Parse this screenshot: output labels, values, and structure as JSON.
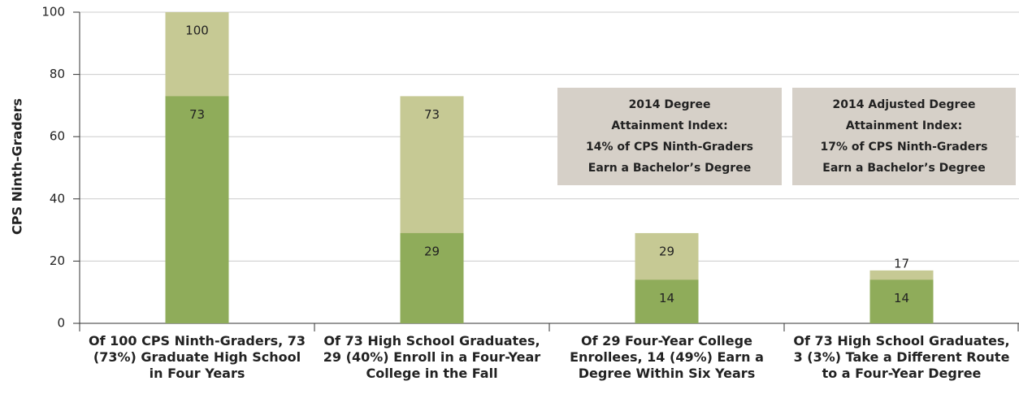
{
  "chart_data": {
    "type": "overlap_bar",
    "ylabel": "CPS Ninth-Graders",
    "categories": [
      "Of 100 CPS Ninth-Graders, 73 (73%) Graduate High School in Four Years",
      "Of 73 High School Graduates, 29 (40%) Enroll in a Four-Year College in the Fall",
      "Of 29 Four-Year College Enrollees, 14 (49%) Earn a Degree Within Six Years",
      "Of 73 High School Graduates, 3 (3%) Take a Different Route to a Four-Year Degree"
    ],
    "series": [
      {
        "color": "#c6c994",
        "values": [
          100,
          73,
          29,
          17
        ]
      },
      {
        "color": "#8fac5a",
        "values": [
          73,
          29,
          14,
          14
        ]
      }
    ],
    "ylim": [
      0,
      100
    ],
    "yticks": [
      0,
      20,
      40,
      60,
      80,
      100
    ],
    "grid": true,
    "annotations": [
      {
        "lines": [
          "2014 Degree",
          "Attainment Index:",
          "14% of CPS Ninth-Graders",
          "Earn a Bachelor’s Degree"
        ]
      },
      {
        "lines": [
          "2014 Adjusted Degree",
          "Attainment Index:",
          "17% of CPS Ninth-Graders",
          "Earn a Bachelor’s Degree"
        ]
      }
    ]
  }
}
